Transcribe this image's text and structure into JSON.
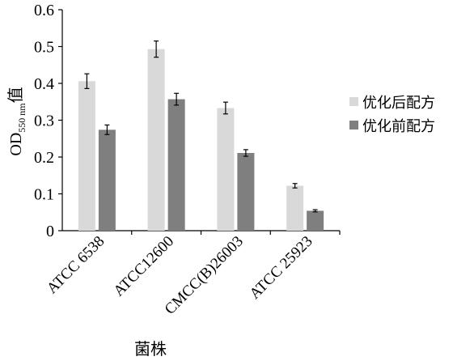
{
  "chart_data": {
    "type": "bar",
    "categories": [
      "ATCC 6538",
      "ATCC12600",
      "CMCC(B)26003",
      "ATCC 25923"
    ],
    "series": [
      {
        "name": "优化后配方",
        "color": "#d9d9d9",
        "values": [
          0.406,
          0.493,
          0.333,
          0.122
        ],
        "errors": [
          0.02,
          0.022,
          0.016,
          0.006
        ]
      },
      {
        "name": "优化前配方",
        "color": "#7f7f7f",
        "values": [
          0.274,
          0.357,
          0.211,
          0.054
        ],
        "errors": [
          0.013,
          0.016,
          0.009,
          0.003
        ]
      }
    ],
    "ylim": [
      0,
      0.6
    ],
    "yticks": [
      "0",
      "0.1",
      "0.2",
      "0.3",
      "0.4",
      "0.5",
      "0.6"
    ],
    "ylabel": {
      "main": "OD",
      "sub": "550 nm",
      "suffix": "值"
    },
    "xlabel": "菌株",
    "grid": false,
    "legend_position": "right"
  }
}
